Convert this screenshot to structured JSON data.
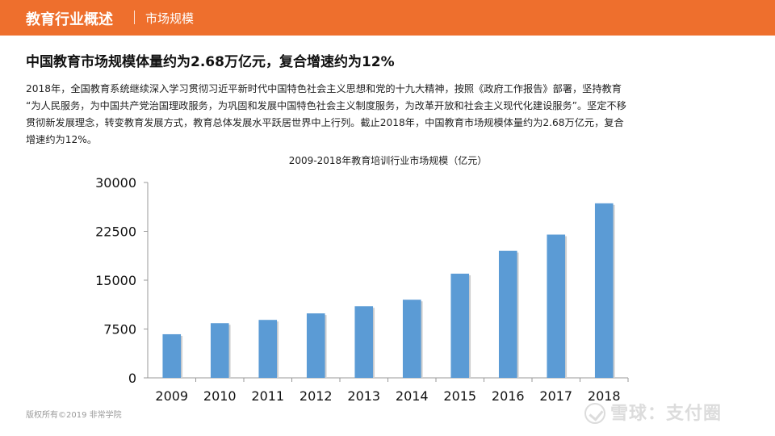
{
  "header": {
    "title": "教育行业概述",
    "subtitle": "市场规模"
  },
  "headline": "中国教育市场规模体量约为2.68万亿元，复合增速约为12%",
  "paragraph_lines": [
    "2018年，全国教育系统继续深入学习贯彻习近平新时代中国特色社会主义思想和党的十九大精神，按照《政府工作报告》部署，坚持教育",
    "“为人民服务，为中国共产党治国理政服务，为巩固和发展中国特色社会主义制度服务，为改革开放和社会主义现代化建设服务”。坚定不移",
    "贯彻新发展理念，转变教育发展方式，教育总体发展水平跃居世界中上行列。截止2018年，中国教育市场规模体量约为2.68万亿元，复合",
    "增速约为12%。"
  ],
  "footer": "版权所有©2019 非常学院",
  "watermark": "雪球：支付圈",
  "colors": {
    "header": "#ee6f2d",
    "bar": "#5b9bd5"
  },
  "chart_data": {
    "type": "bar",
    "title": "2009-2018年教育培训行业市场规模（亿元）",
    "xlabel": "",
    "ylabel": "",
    "categories": [
      "2009",
      "2010",
      "2011",
      "2012",
      "2013",
      "2014",
      "2015",
      "2016",
      "2017",
      "2018"
    ],
    "values": [
      6700,
      8400,
      8900,
      9900,
      11000,
      12000,
      16000,
      19500,
      22000,
      26800
    ],
    "ylim": [
      0,
      30000
    ],
    "yticks": [
      0,
      7500,
      15000,
      22500,
      30000
    ],
    "grid": false,
    "legend": "none"
  }
}
